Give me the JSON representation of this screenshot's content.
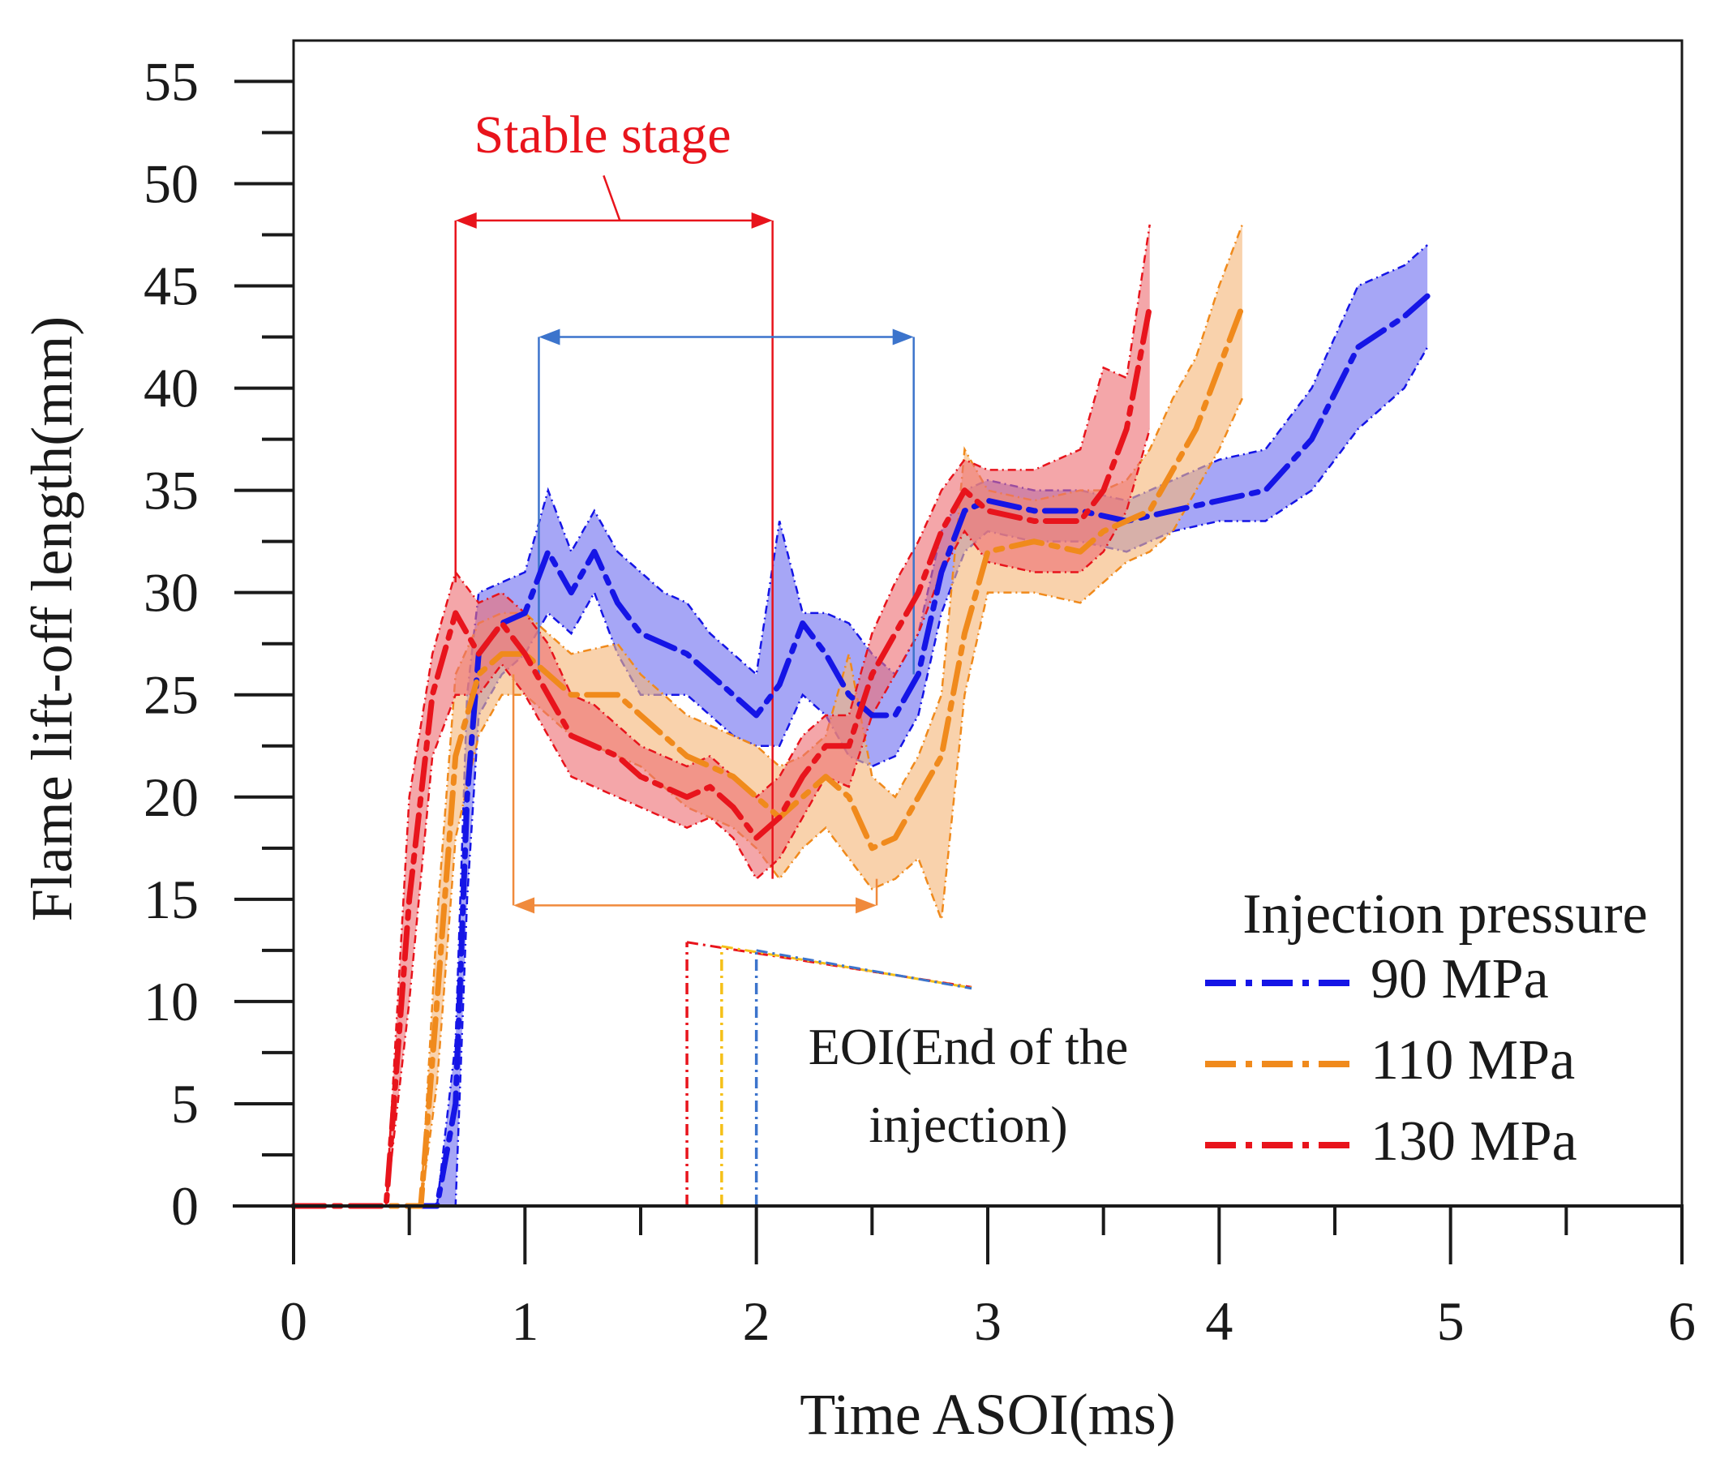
{
  "chart_data": {
    "type": "line",
    "title": "",
    "xlabel": "Time ASOI(ms)",
    "ylabel": "Flame lift-off length(mm)",
    "xlim": [
      0,
      6
    ],
    "ylim": [
      0,
      57
    ],
    "xticks": [
      0,
      1,
      2,
      3,
      4,
      5,
      6
    ],
    "yticks": [
      0,
      5,
      10,
      15,
      20,
      25,
      30,
      35,
      40,
      45,
      50,
      55
    ],
    "grid": false,
    "legend": {
      "title": "Injection pressure",
      "position": "bottom-right"
    },
    "series": [
      {
        "name": "90 MPa",
        "color": "#1515e6",
        "band_color": "#6f6ff0",
        "x": [
          0,
          0.5,
          0.62,
          0.7,
          0.75,
          0.8,
          0.9,
          1.0,
          1.1,
          1.2,
          1.3,
          1.4,
          1.5,
          1.6,
          1.7,
          1.8,
          1.9,
          2.0,
          2.1,
          2.2,
          2.3,
          2.4,
          2.5,
          2.6,
          2.7,
          2.8,
          2.9,
          3.0,
          3.2,
          3.4,
          3.6,
          3.8,
          4.0,
          4.2,
          4.4,
          4.6,
          4.8,
          4.9
        ],
        "values": [
          0,
          0,
          0,
          5,
          20,
          27,
          28.5,
          29,
          32,
          30,
          32,
          29.5,
          28,
          27.5,
          27,
          26,
          25,
          24,
          25.5,
          28.5,
          27,
          25,
          24,
          24,
          26,
          31,
          34,
          34.5,
          34,
          34,
          33.5,
          34,
          34.5,
          35,
          37.5,
          42,
          43.5,
          44.5
        ],
        "upper": [
          0,
          0,
          0,
          8,
          25,
          30,
          30.5,
          31,
          35,
          32,
          34,
          32,
          31,
          30,
          29.5,
          28,
          27,
          26,
          33.5,
          29,
          29,
          28.5,
          27,
          26,
          28,
          33,
          35,
          35.5,
          35,
          35,
          34.5,
          35.5,
          36.5,
          37,
          40,
          45,
          46,
          47
        ],
        "lower": [
          0,
          0,
          0,
          0,
          15,
          24,
          26,
          27,
          29,
          28,
          30,
          27,
          25,
          25,
          25,
          24,
          23,
          22.5,
          22.5,
          25,
          24,
          22,
          21.5,
          22,
          24,
          29,
          32,
          33,
          32.5,
          32.5,
          32,
          33,
          33.5,
          33.5,
          35,
          38,
          40,
          42
        ]
      },
      {
        "name": "110 MPa",
        "color": "#f08a1c",
        "band_color": "#f6b679",
        "x": [
          0,
          0.45,
          0.55,
          0.62,
          0.7,
          0.8,
          0.9,
          1.0,
          1.2,
          1.4,
          1.5,
          1.6,
          1.7,
          1.8,
          1.9,
          2.0,
          2.1,
          2.2,
          2.3,
          2.4,
          2.5,
          2.6,
          2.7,
          2.8,
          2.9,
          3.0,
          3.2,
          3.4,
          3.5,
          3.6,
          3.7,
          3.8,
          3.9,
          4.0,
          4.1
        ],
        "values": [
          0,
          0,
          0,
          10,
          22,
          26,
          27,
          27,
          25,
          25,
          24,
          23,
          22,
          21.5,
          21,
          20,
          19,
          20,
          21,
          20,
          17.5,
          18,
          20,
          22,
          28,
          32,
          32.5,
          32,
          33,
          33.5,
          34,
          36,
          38,
          41,
          44
        ],
        "upper": [
          0,
          0,
          0,
          14,
          26,
          28.5,
          29,
          29,
          27,
          27.5,
          26,
          25,
          24,
          23.5,
          23,
          22.5,
          21.5,
          22,
          23,
          27,
          21,
          20,
          22,
          25,
          37,
          35,
          34.5,
          35,
          35,
          35.5,
          37,
          39.5,
          41.5,
          45,
          48
        ],
        "lower": [
          0,
          0,
          0,
          6,
          18,
          23,
          25,
          25,
          23,
          22,
          21.5,
          20.5,
          19.5,
          19,
          18.5,
          17.5,
          16,
          17.5,
          18.5,
          17,
          15.5,
          16,
          17,
          14,
          25,
          30,
          30,
          29.5,
          30.5,
          31.5,
          32,
          33,
          35,
          37,
          39.5
        ]
      },
      {
        "name": "130 MPa",
        "color": "#e8141c",
        "band_color": "#ee6f74",
        "x": [
          0,
          0.4,
          0.5,
          0.6,
          0.7,
          0.8,
          0.9,
          1.0,
          1.1,
          1.2,
          1.3,
          1.4,
          1.5,
          1.6,
          1.7,
          1.8,
          1.9,
          2.0,
          2.1,
          2.2,
          2.3,
          2.4,
          2.5,
          2.6,
          2.7,
          2.8,
          2.9,
          3.0,
          3.2,
          3.4,
          3.5,
          3.6,
          3.7
        ],
        "values": [
          0,
          0,
          15,
          25,
          29,
          27,
          28.5,
          27,
          25,
          23,
          22.5,
          22,
          21,
          20.5,
          20,
          20.5,
          19.5,
          18,
          19,
          21,
          22.5,
          22.5,
          26,
          28,
          30,
          33,
          35,
          34,
          33.5,
          33.5,
          35,
          38,
          44
        ],
        "upper": [
          0,
          0,
          20,
          27,
          31,
          29.5,
          30,
          29,
          27.5,
          25,
          24.5,
          23.5,
          22.5,
          22,
          21.5,
          22,
          21,
          20,
          21,
          23,
          24,
          24,
          28,
          30.5,
          32.5,
          35,
          36.5,
          36,
          36,
          37,
          41,
          40.5,
          48
        ],
        "lower": [
          0,
          0,
          10,
          22,
          25,
          25,
          26.5,
          25,
          23,
          21,
          20.5,
          20,
          19.5,
          19,
          18.5,
          19,
          18,
          16,
          17,
          19,
          21,
          20.5,
          24,
          26,
          28,
          31,
          33,
          31.5,
          31,
          31,
          32,
          34,
          38
        ]
      }
    ],
    "stable_ranges": [
      {
        "series": "130 MPa",
        "color": "#e8141c",
        "x_start": 0.7,
        "x_end": 2.07,
        "y": 48.2
      },
      {
        "series": "90 MPa",
        "color": "#3c74cc",
        "x_start": 1.06,
        "x_end": 2.68,
        "y": 42.5
      },
      {
        "series": "110 MPa",
        "color": "#f08a3c",
        "x_start": 0.95,
        "x_end": 2.52,
        "y": 14.7
      }
    ],
    "eoi": [
      {
        "series": "130 MPa",
        "x": 1.7,
        "color": "#e8141c"
      },
      {
        "series": "110 MPa",
        "x": 1.85,
        "color": "#f5c018"
      },
      {
        "series": "90 MPa",
        "x": 2.0,
        "color": "#3c74cc"
      }
    ],
    "annotations": {
      "stable_stage": "Stable stage",
      "eoi_line1": "EOI(End of the",
      "eoi_line2": "injection)"
    }
  }
}
